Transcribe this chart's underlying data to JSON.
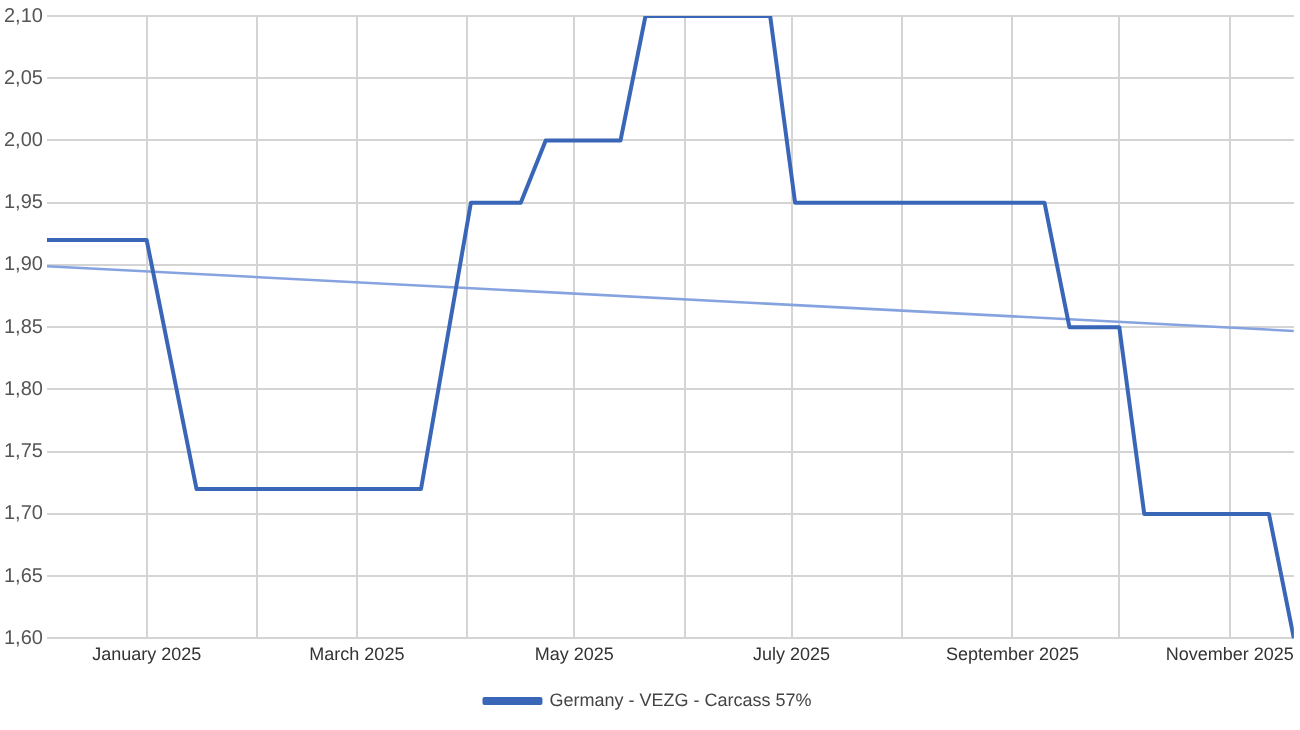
{
  "chart_data": {
    "type": "line",
    "series": [
      {
        "name": "Germany - VEZG - Carcass 57%",
        "color": "#3a66b8",
        "x": [
          "2024-12-04",
          "2025-01-01",
          "2025-01-15",
          "2025-03-19",
          "2025-04-02",
          "2025-04-16",
          "2025-04-23",
          "2025-05-14",
          "2025-05-21",
          "2025-06-25",
          "2025-07-02",
          "2025-09-10",
          "2025-09-17",
          "2025-10-01",
          "2025-10-08",
          "2025-11-12",
          "2025-11-19"
        ],
        "values": [
          1.92,
          1.92,
          1.72,
          1.72,
          1.95,
          1.95,
          2.0,
          2.0,
          2.1,
          2.1,
          1.95,
          1.95,
          1.85,
          1.85,
          1.7,
          1.7,
          1.6
        ]
      },
      {
        "type": "line",
        "color": "#86a3e0",
        "x": [
          "2024-12-04",
          "2025-11-19"
        ],
        "values": [
          1.899,
          1.847
        ]
      }
    ],
    "xlim": [
      "2024-12-04",
      "2025-11-19"
    ],
    "xticks": [
      {
        "value": "2025-01-01",
        "label": "January 2025"
      },
      {
        "value": "2025-02-01",
        "label": null
      },
      {
        "value": "2025-03-01",
        "label": "March 2025"
      },
      {
        "value": "2025-04-01",
        "label": null
      },
      {
        "value": "2025-05-01",
        "label": "May 2025"
      },
      {
        "value": "2025-06-01",
        "label": null
      },
      {
        "value": "2025-07-01",
        "label": "July 2025"
      },
      {
        "value": "2025-08-01",
        "label": null
      },
      {
        "value": "2025-09-01",
        "label": "September 2025"
      },
      {
        "value": "2025-10-01",
        "label": null
      },
      {
        "value": "2025-11-01",
        "label": "November 2025"
      }
    ],
    "ylim": [
      1.6,
      2.1
    ],
    "yticks": [
      {
        "value": 1.6,
        "label": "1,60"
      },
      {
        "value": 1.65,
        "label": "1,65"
      },
      {
        "value": 1.7,
        "label": "1,70"
      },
      {
        "value": 1.75,
        "label": "1,75"
      },
      {
        "value": 1.8,
        "label": "1,80"
      },
      {
        "value": 1.85,
        "label": "1,85"
      },
      {
        "value": 1.9,
        "label": "1,90"
      },
      {
        "value": 1.95,
        "label": "1,95"
      },
      {
        "value": 2.0,
        "label": "2,00"
      },
      {
        "value": 2.05,
        "label": "2,05"
      },
      {
        "value": 2.1,
        "label": "2,10"
      }
    ],
    "grid": true,
    "legend": "bottom",
    "marker": "none",
    "line_style": "solid"
  }
}
